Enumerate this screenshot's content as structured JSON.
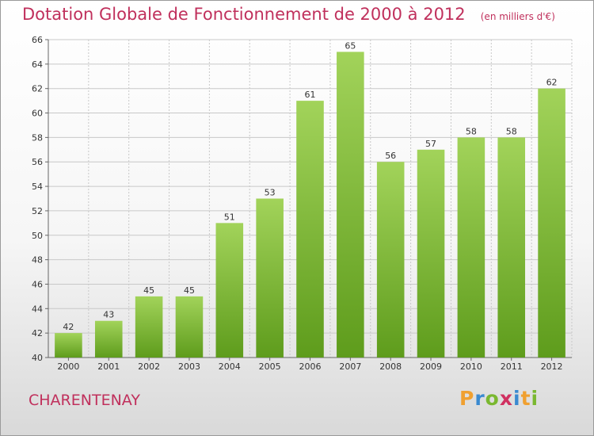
{
  "header": {
    "title": "Dotation Globale de Fonctionnement de 2000 à 2012",
    "unit": "(en milliers d'€)"
  },
  "footer": {
    "commune": "CHARENTENAY",
    "logo_letters": [
      "P",
      "r",
      "o",
      "x",
      "i",
      "t",
      "i"
    ],
    "logo_colors": [
      "#f0a030",
      "#3a8ad0",
      "#7ab830",
      "#d03060",
      "#3a8ad0",
      "#f0a030",
      "#7ab830"
    ]
  },
  "colors": {
    "title": "#c0305c",
    "bar_light": "#a2d35a",
    "bar_dark": "#5e9c1c",
    "grid": "#c8c8c8"
  },
  "chart_data": {
    "type": "bar",
    "categories": [
      "2000",
      "2001",
      "2002",
      "2003",
      "2004",
      "2005",
      "2006",
      "2007",
      "2008",
      "2009",
      "2010",
      "2011",
      "2012"
    ],
    "values": [
      42,
      43,
      45,
      45,
      51,
      53,
      61,
      65,
      56,
      57,
      58,
      58,
      62
    ],
    "ylim": [
      40,
      66
    ],
    "yticks": [
      40,
      42,
      44,
      46,
      48,
      50,
      52,
      54,
      56,
      58,
      60,
      62,
      64,
      66
    ],
    "grid": true,
    "data_labels": true
  }
}
